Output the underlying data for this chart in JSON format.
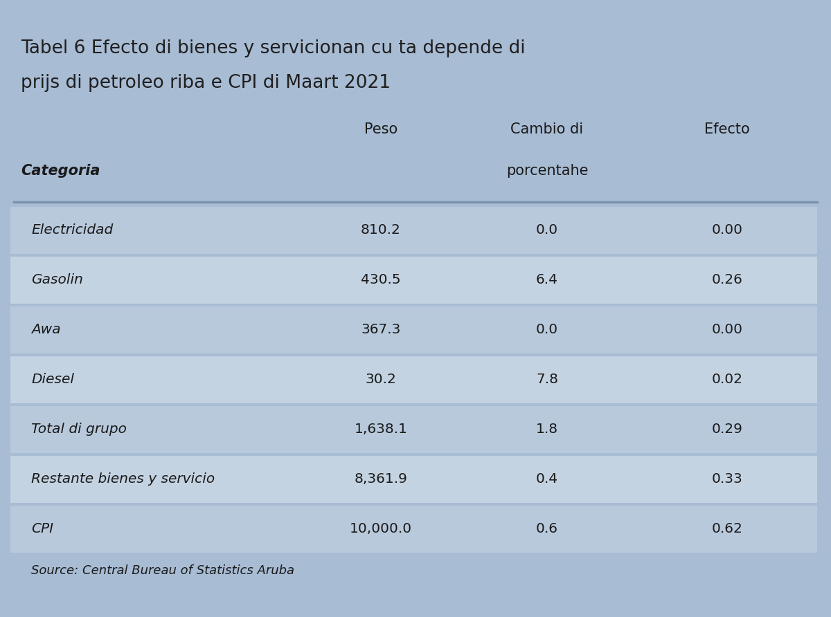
{
  "title_line1": "Tabel 6 Efecto di bienes y servicionan cu ta depende di",
  "title_line2": "prijs di petroleo riba e CPI di Maart 2021",
  "col_headers": [
    "Peso",
    "Cambio di\nporcentahe",
    "Efecto"
  ],
  "col_header_line1": [
    "Peso",
    "Cambio di",
    "Efecto"
  ],
  "col_header_line2": [
    "",
    "porcentahe",
    ""
  ],
  "row_header": "Categoria",
  "categories": [
    "Electricidad",
    "Gasolin",
    "Awa",
    "Diesel",
    "Total di grupo",
    "Restante bienes y servicio",
    "CPI"
  ],
  "peso": [
    "810.2",
    "430.5",
    "367.3",
    "30.2",
    "1,638.1",
    "8,361.9",
    "10,000.0"
  ],
  "cambio": [
    "0.0",
    "6.4",
    "0.0",
    "7.8",
    "1.8",
    "0.4",
    "0.6"
  ],
  "efecto": [
    "0.00",
    "0.26",
    "0.00",
    "0.02",
    "0.29",
    "0.33",
    "0.62"
  ],
  "source": "Source: Central Bureau of Statistics Aruba",
  "bg_color": "#a8bcd4",
  "row_colors_odd": "#b8cce4",
  "row_colors_even": "#c5d5e8",
  "header_bg": "#a8bcd4",
  "title_color": "#1f1f1f",
  "text_color": "#1a1a1a",
  "dark_row_color": "#9dafc5",
  "separator_color": "#7a93ad"
}
